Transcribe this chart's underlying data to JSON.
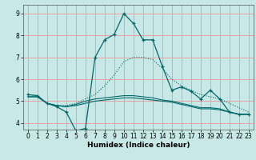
{
  "xlabel": "Humidex (Indice chaleur)",
  "x_ticks": [
    0,
    1,
    2,
    3,
    4,
    5,
    6,
    7,
    8,
    9,
    10,
    11,
    12,
    13,
    14,
    15,
    16,
    17,
    18,
    19,
    20,
    21,
    22,
    23
  ],
  "xlim": [
    -0.5,
    23.5
  ],
  "ylim": [
    3.7,
    9.4
  ],
  "y_ticks": [
    4,
    5,
    6,
    7,
    8,
    9
  ],
  "bg_color": "#c8e8e8",
  "grid_color": "#e8a0a0",
  "line_color": "#006868",
  "line1_dotted": {
    "x": [
      0,
      1,
      2,
      3,
      4,
      5,
      6,
      7,
      8,
      9,
      10,
      11,
      12,
      13,
      14,
      15,
      16,
      17,
      18,
      19,
      20,
      21,
      22,
      23
    ],
    "y": [
      5.3,
      5.25,
      4.9,
      4.8,
      4.8,
      4.9,
      5.1,
      5.3,
      5.7,
      6.2,
      6.8,
      7.0,
      7.0,
      6.9,
      6.5,
      6.0,
      5.7,
      5.5,
      5.3,
      5.2,
      5.1,
      4.9,
      4.7,
      4.5
    ]
  },
  "line2_main": {
    "x": [
      0,
      1,
      2,
      3,
      4,
      5,
      6,
      7,
      8,
      9,
      10,
      11,
      12,
      13,
      14,
      15,
      16,
      17,
      18,
      19,
      20,
      21,
      22,
      23
    ],
    "y": [
      5.3,
      5.25,
      4.9,
      4.75,
      4.5,
      3.65,
      3.75,
      7.0,
      7.8,
      8.05,
      9.0,
      8.55,
      7.8,
      7.8,
      6.6,
      5.5,
      5.65,
      5.45,
      5.1,
      5.5,
      5.1,
      4.5,
      4.4,
      4.4
    ]
  },
  "line3_flat": {
    "x": [
      0,
      1,
      2,
      3,
      4,
      5,
      6,
      7,
      8,
      9,
      10,
      11,
      12,
      13,
      14,
      15,
      16,
      17,
      18,
      19,
      20,
      21,
      22,
      23
    ],
    "y": [
      5.2,
      5.2,
      4.9,
      4.8,
      4.75,
      4.8,
      4.9,
      5.0,
      5.05,
      5.1,
      5.15,
      5.15,
      5.1,
      5.05,
      5.0,
      4.95,
      4.85,
      4.75,
      4.65,
      4.65,
      4.6,
      4.5,
      4.4,
      4.4
    ]
  },
  "line4_flat": {
    "x": [
      0,
      1,
      2,
      3,
      4,
      5,
      6,
      7,
      8,
      9,
      10,
      11,
      12,
      13,
      14,
      15,
      16,
      17,
      18,
      19,
      20,
      21,
      22,
      23
    ],
    "y": [
      5.2,
      5.2,
      4.9,
      4.8,
      4.75,
      4.85,
      5.0,
      5.1,
      5.15,
      5.2,
      5.25,
      5.25,
      5.2,
      5.15,
      5.05,
      5.0,
      4.9,
      4.8,
      4.7,
      4.7,
      4.65,
      4.5,
      4.4,
      4.4
    ]
  }
}
